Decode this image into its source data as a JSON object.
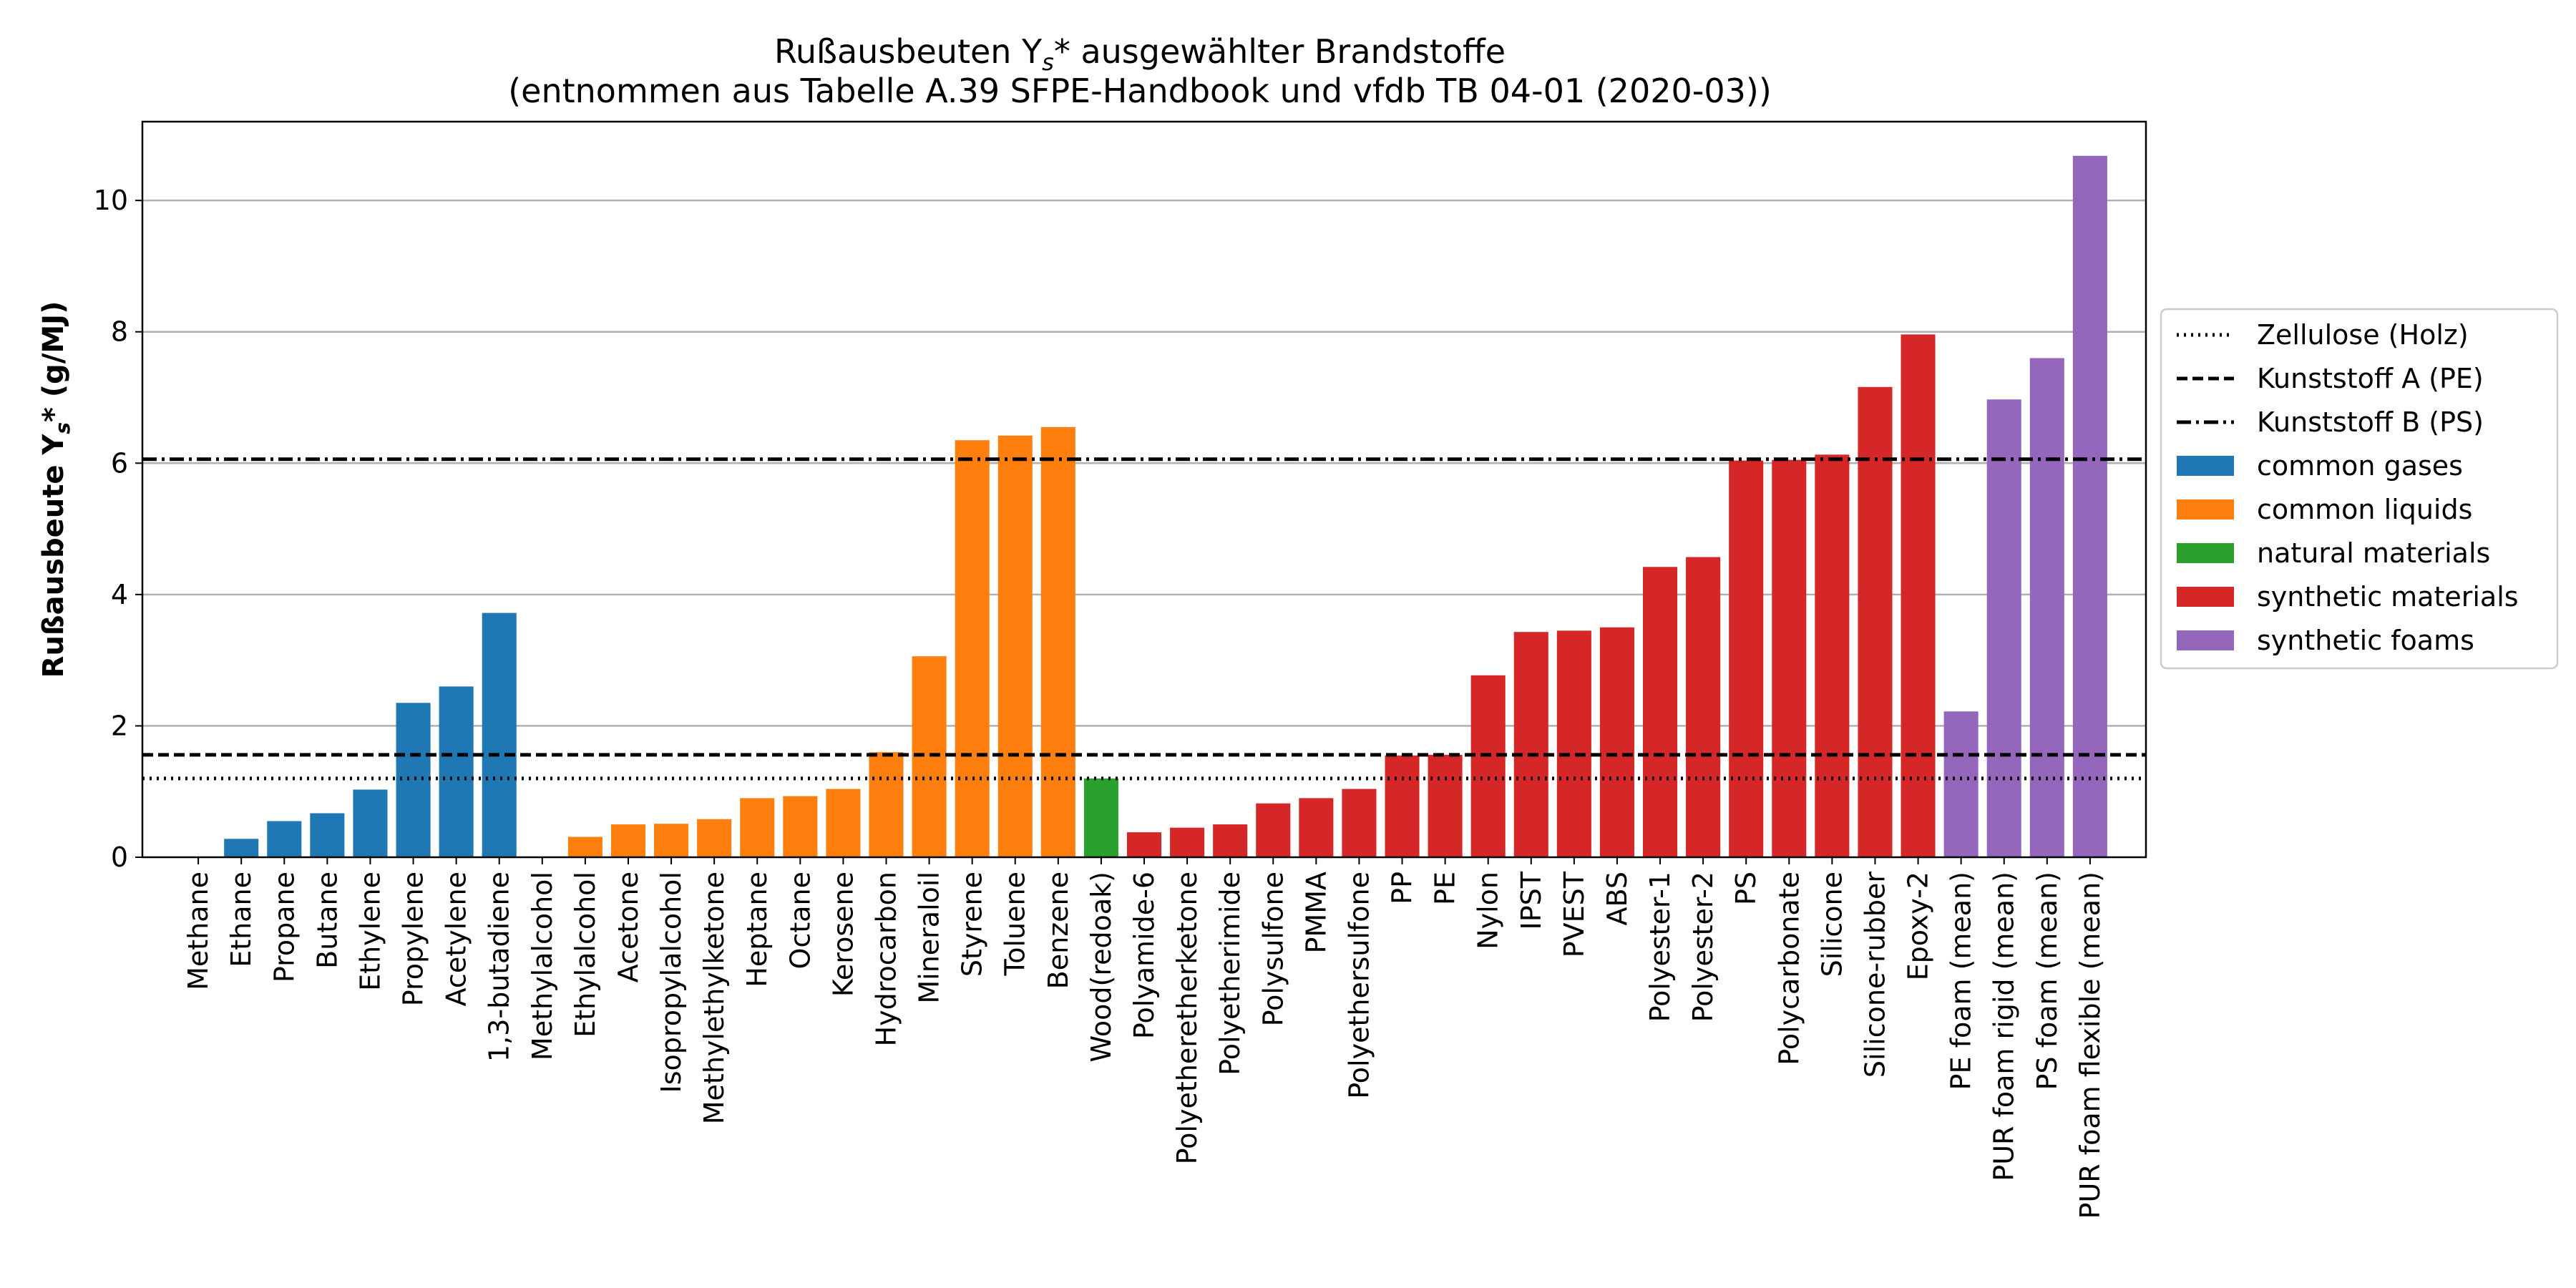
{
  "chart_data": {
    "type": "bar",
    "title_line1_main": "Rußausbeuten Y",
    "title_line1_sub": "s",
    "title_line1_rest": "* ausgewählter Brandstoffe",
    "title_line2": "(entnommen aus Tabelle A.39 SFPE-Handbook und vfdb TB 04-01 (2020-03))",
    "ylabel_main": "Rußausbeute Y",
    "ylabel_sub": "s",
    "ylabel_rest": "* (g/MJ)",
    "xlabel": "",
    "ylim": [
      0,
      11.2
    ],
    "yticks": [
      0,
      2,
      4,
      6,
      8,
      10
    ],
    "ytick_labels": [
      "0",
      "2",
      "4",
      "6",
      "8",
      "10"
    ],
    "grid": "horizontal",
    "legend_position": "right-center",
    "categories": [
      "Methane",
      "Ethane",
      "Propane",
      "Butane",
      "Ethylene",
      "Propylene",
      "Acetylene",
      "1,3-butadiene",
      "Methylalcohol",
      "Ethylalcohol",
      "Acetone",
      "Isopropylalcohol",
      "Methylethylketone",
      "Heptane",
      "Octane",
      "Kerosene",
      "Hydrocarbon",
      "Mineraloil",
      "Styrene",
      "Toluene",
      "Benzene",
      "Wood(redoak)",
      "Polyamide-6",
      "Polyetheretherketone",
      "Polyetherimide",
      "Polysulfone",
      "PMMA",
      "Polyethersulfone",
      "PP",
      "PE",
      "Nylon",
      "IPST",
      "PVEST",
      "ABS",
      "Polyester-1",
      "Polyester-2",
      "PS",
      "Polycarbonate",
      "Silicone",
      "Silicone-rubber",
      "Epoxy-2",
      "PE foam (mean)",
      "PUR foam rigid (mean)",
      "PS foam (mean)",
      "PUR foam flexible (mean)"
    ],
    "values": [
      0.0,
      0.28,
      0.55,
      0.67,
      1.03,
      2.35,
      2.6,
      3.72,
      0.0,
      0.31,
      0.5,
      0.51,
      0.58,
      0.9,
      0.93,
      1.04,
      1.6,
      3.06,
      6.35,
      6.42,
      6.55,
      1.2,
      0.38,
      0.45,
      0.5,
      0.82,
      0.9,
      1.04,
      1.55,
      1.56,
      2.77,
      3.43,
      3.45,
      3.5,
      4.42,
      4.57,
      6.04,
      6.05,
      6.13,
      7.16,
      7.96,
      2.22,
      6.97,
      7.6,
      10.68
    ],
    "groups": [
      "common gases",
      "common gases",
      "common gases",
      "common gases",
      "common gases",
      "common gases",
      "common gases",
      "common gases",
      "common liquids",
      "common liquids",
      "common liquids",
      "common liquids",
      "common liquids",
      "common liquids",
      "common liquids",
      "common liquids",
      "common liquids",
      "common liquids",
      "common liquids",
      "common liquids",
      "common liquids",
      "natural materials",
      "synthetic materials",
      "synthetic materials",
      "synthetic materials",
      "synthetic materials",
      "synthetic materials",
      "synthetic materials",
      "synthetic materials",
      "synthetic materials",
      "synthetic materials",
      "synthetic materials",
      "synthetic materials",
      "synthetic materials",
      "synthetic materials",
      "synthetic materials",
      "synthetic materials",
      "synthetic materials",
      "synthetic materials",
      "synthetic materials",
      "synthetic materials",
      "synthetic foams",
      "synthetic foams",
      "synthetic foams",
      "synthetic foams"
    ],
    "group_colors": {
      "common gases": "#1f77b4",
      "common liquids": "#ff7f0e",
      "natural materials": "#2ca02c",
      "synthetic materials": "#d62728",
      "synthetic foams": "#9467bd"
    },
    "reference_lines": [
      {
        "name": "Zellulose (Holz)",
        "value": 1.2,
        "style": "dotted"
      },
      {
        "name": "Kunststoff A (PE)",
        "value": 1.56,
        "style": "dashed"
      },
      {
        "name": "Kunststoff B (PS)",
        "value": 6.06,
        "style": "dashdot"
      }
    ],
    "legend": [
      {
        "label": "Zellulose (Holz)",
        "kind": "line",
        "style": "dotted"
      },
      {
        "label": "Kunststoff A (PE)",
        "kind": "line",
        "style": "dashed"
      },
      {
        "label": "Kunststoff B (PS)",
        "kind": "line",
        "style": "dashdot"
      },
      {
        "label": "common gases",
        "kind": "patch",
        "color": "#1f77b4"
      },
      {
        "label": "common liquids",
        "kind": "patch",
        "color": "#ff7f0e"
      },
      {
        "label": "natural materials",
        "kind": "patch",
        "color": "#2ca02c"
      },
      {
        "label": "synthetic materials",
        "kind": "patch",
        "color": "#d62728"
      },
      {
        "label": "synthetic foams",
        "kind": "patch",
        "color": "#9467bd"
      }
    ]
  }
}
